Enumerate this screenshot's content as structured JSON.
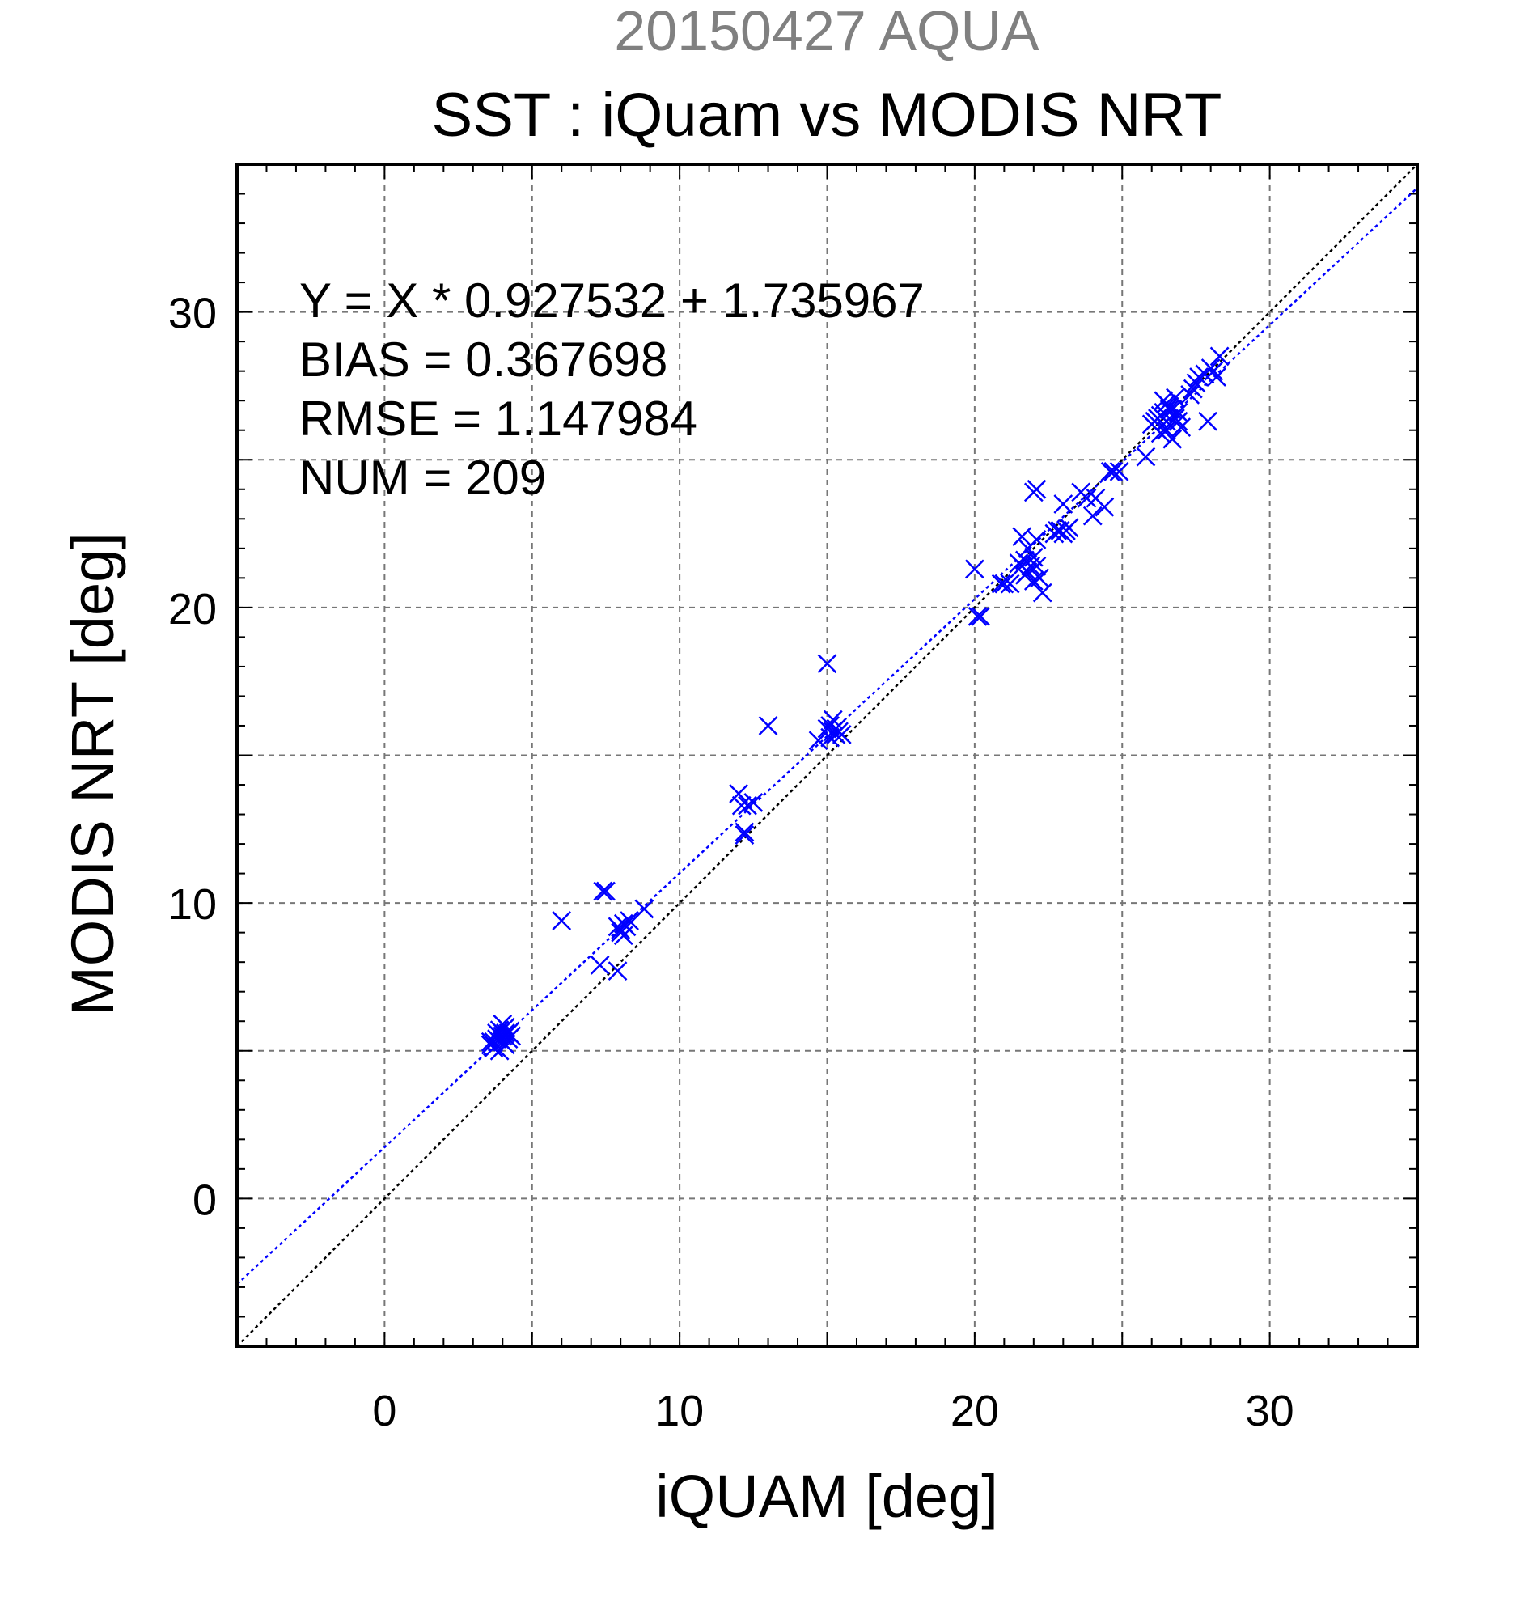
{
  "chart_data": {
    "type": "scatter",
    "supertitle": "20150427 AQUA",
    "title": "SST : iQuam vs MODIS NRT",
    "xlabel": "iQUAM [deg]",
    "ylabel": "MODIS NRT [deg]",
    "xlim": [
      -5,
      35
    ],
    "ylim": [
      -5,
      35
    ],
    "xticks": [
      0,
      10,
      20,
      30
    ],
    "yticks": [
      0,
      10,
      20,
      30
    ],
    "xtick_labels": [
      "0",
      "10",
      "20",
      "30"
    ],
    "ytick_labels": [
      "0",
      "10",
      "20",
      "30"
    ],
    "grid": true,
    "grid_step": 5,
    "annotations": [
      "Y = X * 0.927532 + 1.735967",
      "BIAS = 0.367698",
      "RMSE = 1.147984",
      "NUM = 209"
    ],
    "fit_line": {
      "slope": 0.927532,
      "intercept": 1.735967,
      "color": "#0000ff",
      "style": "dotted"
    },
    "identity_line": {
      "slope": 1,
      "intercept": 0,
      "color": "#000000",
      "style": "dotted"
    },
    "marker": "x",
    "marker_color": "#0000ff",
    "series": [
      {
        "x": [
          3.6,
          3.7,
          3.8,
          3.9,
          4.0,
          4.1,
          4.2,
          4.3,
          3.7,
          3.9,
          4.0,
          4.1,
          3.8,
          4.2,
          4.0,
          3.6,
          4.1,
          3.9,
          6.0,
          7.3,
          7.4,
          7.5,
          7.9,
          8.0,
          8.1,
          8.2,
          8.3,
          7.9,
          8.1,
          8.8,
          8.0,
          12.0,
          12.1,
          12.2,
          12.3,
          12.5,
          12.2,
          13.0,
          14.7,
          15.0,
          15.1,
          15.2,
          15.3,
          15.4,
          15.5,
          15.0,
          15.2,
          15.3,
          15.1,
          20.0,
          20.1,
          20.2,
          20.9,
          21.0,
          21.2,
          21.5,
          21.6,
          21.7,
          21.8,
          21.9,
          22.0,
          22.1,
          22.2,
          21.8,
          21.6,
          22.0,
          22.3,
          21.7,
          22.1,
          22.0,
          22.1,
          22.7,
          22.8,
          22.9,
          23.0,
          23.1,
          23.2,
          23.0,
          23.6,
          23.8,
          24.0,
          24.1,
          24.4,
          24.6,
          24.7,
          24.9,
          25.8,
          26.0,
          26.1,
          26.2,
          26.3,
          26.4,
          26.5,
          26.6,
          26.7,
          26.8,
          26.9,
          27.0,
          26.5,
          26.3,
          26.7,
          26.6,
          26.2,
          26.9,
          26.4,
          26.8,
          26.5,
          26.6,
          27.3,
          27.4,
          27.5,
          27.6,
          27.8,
          28.0,
          28.1,
          28.3,
          27.9,
          28.2
        ],
        "y": [
          5.3,
          5.3,
          5.4,
          5.5,
          5.5,
          5.6,
          5.6,
          5.5,
          5.1,
          5.7,
          5.9,
          5.2,
          5.6,
          5.4,
          5.3,
          5.2,
          5.8,
          5.0,
          9.4,
          7.9,
          10.4,
          10.4,
          9.2,
          9.1,
          9.3,
          9.2,
          9.4,
          7.7,
          8.9,
          9.8,
          9.0,
          13.7,
          13.3,
          12.3,
          13.3,
          13.4,
          12.4,
          16.0,
          15.5,
          15.9,
          16.0,
          15.8,
          15.9,
          15.8,
          15.7,
          18.1,
          16.2,
          15.7,
          15.6,
          21.3,
          19.7,
          19.7,
          20.8,
          20.8,
          20.8,
          21.5,
          21.4,
          21.6,
          21.2,
          21.4,
          21.7,
          21.4,
          21.0,
          22.0,
          22.4,
          20.9,
          20.5,
          21.1,
          24.0,
          23.9,
          22.3,
          22.5,
          22.6,
          22.6,
          22.5,
          22.6,
          22.7,
          23.5,
          23.9,
          23.7,
          23.1,
          23.7,
          23.4,
          24.6,
          24.6,
          24.6,
          25.1,
          26.2,
          26.3,
          26.4,
          26.5,
          26.6,
          26.9,
          26.8,
          26.7,
          26.4,
          26.3,
          26.1,
          26.0,
          25.9,
          25.7,
          26.8,
          26.4,
          26.6,
          27.0,
          27.1,
          26.3,
          26.7,
          27.2,
          27.4,
          27.6,
          27.8,
          27.9,
          28.1,
          28.0,
          28.5,
          26.3,
          27.8
        ]
      }
    ]
  }
}
